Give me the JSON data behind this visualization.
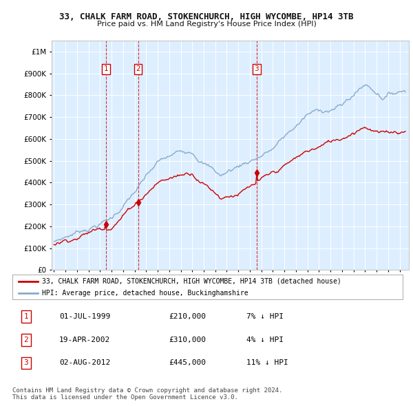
{
  "title": "33, CHALK FARM ROAD, STOKENCHURCH, HIGH WYCOMBE, HP14 3TB",
  "subtitle": "Price paid vs. HM Land Registry's House Price Index (HPI)",
  "sale_dates_float": [
    1999.5,
    2002.3,
    2012.58
  ],
  "sale_prices": [
    210000,
    310000,
    445000
  ],
  "sale_labels": [
    "1",
    "2",
    "3"
  ],
  "sale_color": "#cc0000",
  "hpi_color": "#88aacc",
  "ylim": [
    0,
    1050000
  ],
  "yticks": [
    0,
    100000,
    200000,
    300000,
    400000,
    500000,
    600000,
    700000,
    800000,
    900000,
    1000000
  ],
  "xlim_start": 1994.8,
  "xlim_end": 2025.8,
  "legend_sale": "33, CHALK FARM ROAD, STOKENCHURCH, HIGH WYCOMBE, HP14 3TB (detached house)",
  "legend_hpi": "HPI: Average price, detached house, Buckinghamshire",
  "table_rows": [
    {
      "num": "1",
      "date": "01-JUL-1999",
      "price": "£210,000",
      "pct": "7% ↓ HPI"
    },
    {
      "num": "2",
      "date": "19-APR-2002",
      "price": "£310,000",
      "pct": "4% ↓ HPI"
    },
    {
      "num": "3",
      "date": "02-AUG-2012",
      "price": "£445,000",
      "pct": "11% ↓ HPI"
    }
  ],
  "footer": "Contains HM Land Registry data © Crown copyright and database right 2024.\nThis data is licensed under the Open Government Licence v3.0.",
  "background_color": "#ffffff",
  "chart_bg": "#ddeeff",
  "grid_color": "#ffffff"
}
